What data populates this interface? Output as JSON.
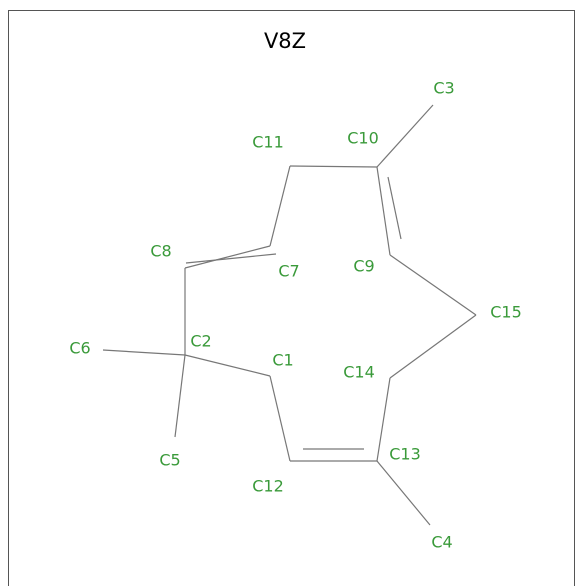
{
  "title": "V8Z",
  "atoms": [
    {
      "label": "C3"
    },
    {
      "label": "C10"
    },
    {
      "label": "C11"
    },
    {
      "label": "C8"
    },
    {
      "label": "C7"
    },
    {
      "label": "C9"
    },
    {
      "label": "C15"
    },
    {
      "label": "C6"
    },
    {
      "label": "C2"
    },
    {
      "label": "C1"
    },
    {
      "label": "C14"
    },
    {
      "label": "C13"
    },
    {
      "label": "C5"
    },
    {
      "label": "C12"
    },
    {
      "label": "C4"
    }
  ]
}
